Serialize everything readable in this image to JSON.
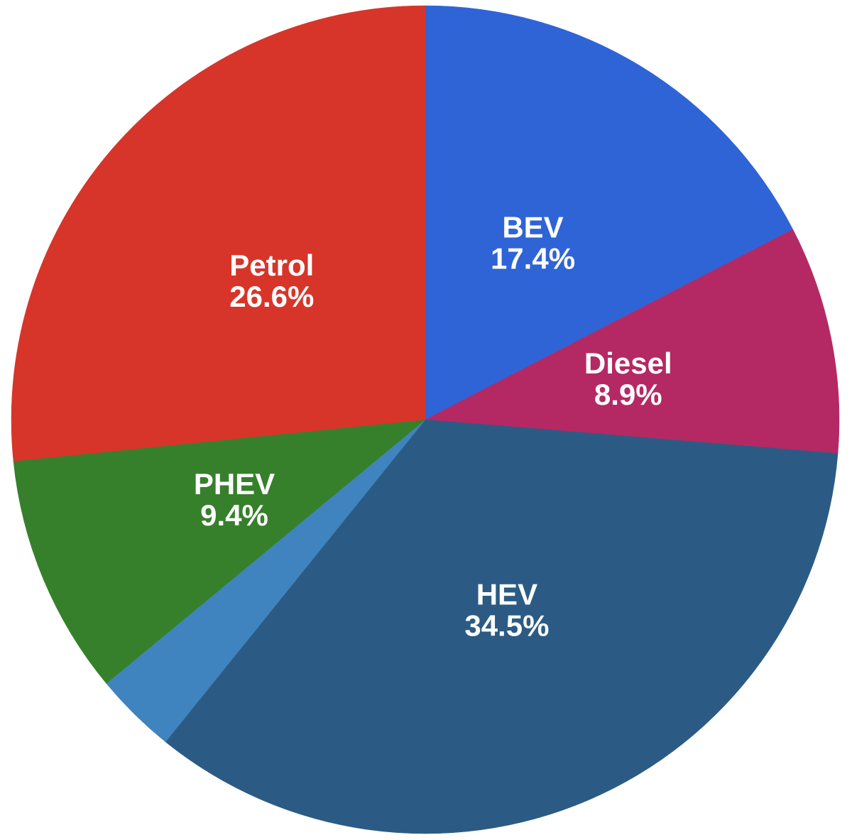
{
  "page": {
    "background_color": "#ffffff"
  },
  "chart_data": {
    "type": "pie",
    "title": "",
    "unit": "%",
    "start_angle_deg": 0,
    "direction": "clockwise",
    "center": [
      599,
      591
    ],
    "radius": 583,
    "label_radius_ratio": 0.5,
    "label_color": "#ffffff",
    "legend": "none",
    "slices": [
      {
        "label": "BEV",
        "value": 17.4,
        "pct_label": "17.4%",
        "color": "#2f64d6"
      },
      {
        "label": "Diesel",
        "value": 8.9,
        "pct_label": "8.9%",
        "color": "#b42964"
      },
      {
        "label": "HEV",
        "value": 34.5,
        "pct_label": "34.5%",
        "color": "#2b5b84"
      },
      {
        "label": "",
        "value": 3.2,
        "pct_label": "3.2%",
        "color": "#3f84bf"
      },
      {
        "label": "PHEV",
        "value": 9.4,
        "pct_label": "9.4%",
        "color": "#36802b"
      },
      {
        "label": "Petrol",
        "value": 26.6,
        "pct_label": "26.6%",
        "color": "#d7352a"
      }
    ]
  }
}
